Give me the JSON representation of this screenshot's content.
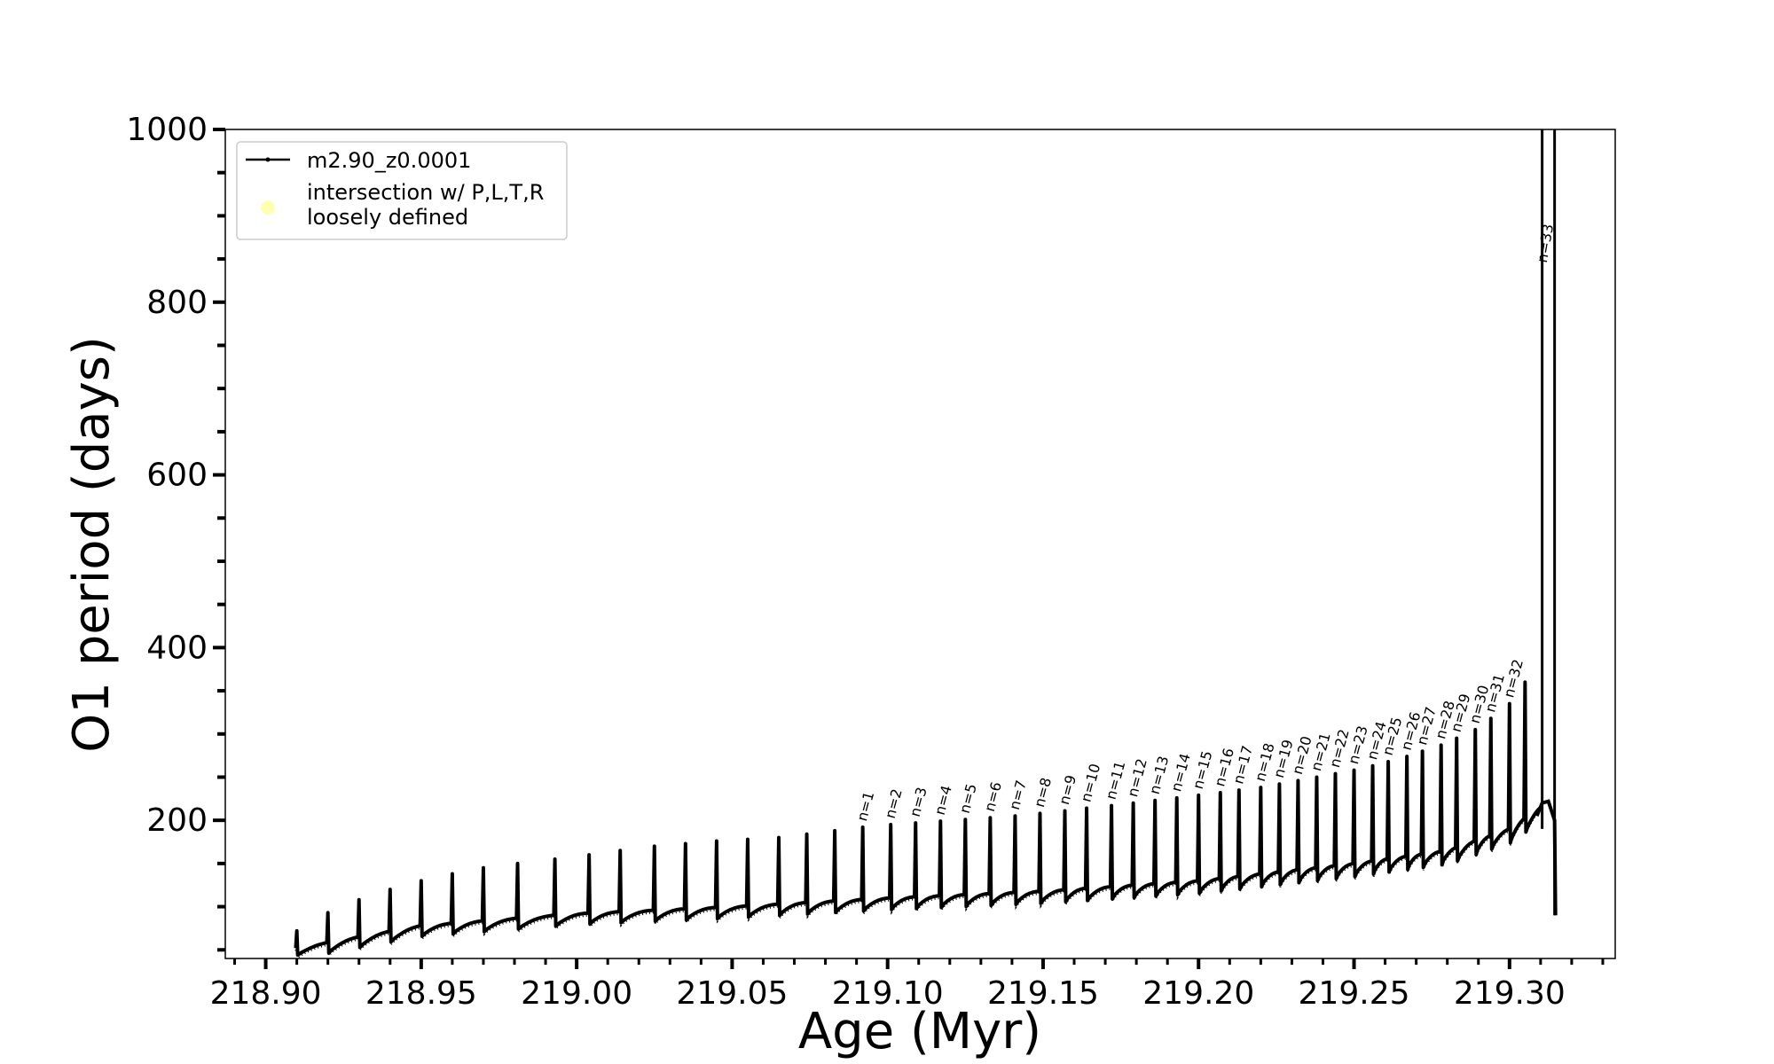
{
  "chart_data": {
    "type": "line",
    "xlabel": "Age (Myr)",
    "ylabel": "O1 period (days)",
    "xlim": [
      218.887,
      219.334
    ],
    "ylim": [
      40,
      1000
    ],
    "xticks": [
      218.9,
      218.95,
      219.0,
      219.05,
      219.1,
      219.15,
      219.2,
      219.25,
      219.3
    ],
    "xtick_labels": [
      "218.90",
      "218.95",
      "219.00",
      "219.05",
      "219.10",
      "219.15",
      "219.20",
      "219.25",
      "219.30"
    ],
    "yticks": [
      200,
      400,
      600,
      800,
      1000
    ],
    "ytick_labels": [
      "200",
      "400",
      "600",
      "800",
      "1000"
    ],
    "legend": {
      "position": "upper left",
      "entries": [
        {
          "label": "m2.90_z0.0001",
          "marker": "line-dot",
          "color": "#000000"
        },
        {
          "label": "intersection w/ P,L,T,R\nloosely defined",
          "marker": "circle",
          "color": "#ffffb0"
        }
      ]
    },
    "series": [
      {
        "name": "m2.90_z0.0001",
        "color": "#000000",
        "baseline_points": [
          [
            218.91,
            52
          ],
          [
            218.93,
            65
          ],
          [
            218.95,
            78
          ],
          [
            219.0,
            92
          ],
          [
            219.05,
            100
          ],
          [
            219.1,
            110
          ],
          [
            219.15,
            118
          ],
          [
            219.2,
            130
          ],
          [
            219.25,
            150
          ],
          [
            219.28,
            165
          ],
          [
            219.3,
            190
          ],
          [
            219.308,
            210
          ],
          [
            219.312,
            220
          ],
          [
            219.315,
            215
          ]
        ],
        "pulses": [
          {
            "x": 218.91,
            "peak": 72
          },
          {
            "x": 218.92,
            "peak": 93
          },
          {
            "x": 218.93,
            "peak": 108
          },
          {
            "x": 218.94,
            "peak": 120
          },
          {
            "x": 218.95,
            "peak": 130
          },
          {
            "x": 218.96,
            "peak": 138
          },
          {
            "x": 218.97,
            "peak": 145
          },
          {
            "x": 218.981,
            "peak": 150
          },
          {
            "x": 218.993,
            "peak": 155
          },
          {
            "x": 219.004,
            "peak": 160
          },
          {
            "x": 219.014,
            "peak": 165
          },
          {
            "x": 219.025,
            "peak": 170
          },
          {
            "x": 219.035,
            "peak": 173
          },
          {
            "x": 219.045,
            "peak": 176
          },
          {
            "x": 219.055,
            "peak": 178
          },
          {
            "x": 219.065,
            "peak": 180
          },
          {
            "x": 219.074,
            "peak": 184
          },
          {
            "x": 219.083,
            "peak": 188
          },
          {
            "x": 219.092,
            "peak": 192,
            "label": "n=1"
          },
          {
            "x": 219.101,
            "peak": 195,
            "label": "n=2"
          },
          {
            "x": 219.109,
            "peak": 197,
            "label": "n=3"
          },
          {
            "x": 219.117,
            "peak": 199,
            "label": "n=4"
          },
          {
            "x": 219.125,
            "peak": 201,
            "label": "n=5"
          },
          {
            "x": 219.133,
            "peak": 203,
            "label": "n=6"
          },
          {
            "x": 219.141,
            "peak": 205,
            "label": "n=7"
          },
          {
            "x": 219.149,
            "peak": 208,
            "label": "n=8"
          },
          {
            "x": 219.157,
            "peak": 211,
            "label": "n=9"
          },
          {
            "x": 219.164,
            "peak": 214,
            "label": "n=10"
          },
          {
            "x": 219.172,
            "peak": 217,
            "label": "n=11"
          },
          {
            "x": 219.179,
            "peak": 220,
            "label": "n=12"
          },
          {
            "x": 219.186,
            "peak": 223,
            "label": "n=13"
          },
          {
            "x": 219.193,
            "peak": 226,
            "label": "n=14"
          },
          {
            "x": 219.2,
            "peak": 229,
            "label": "n=15"
          },
          {
            "x": 219.207,
            "peak": 232,
            "label": "n=16"
          },
          {
            "x": 219.213,
            "peak": 235,
            "label": "n=17"
          },
          {
            "x": 219.22,
            "peak": 238,
            "label": "n=18"
          },
          {
            "x": 219.226,
            "peak": 242,
            "label": "n=19"
          },
          {
            "x": 219.232,
            "peak": 246,
            "label": "n=20"
          },
          {
            "x": 219.238,
            "peak": 250,
            "label": "n=21"
          },
          {
            "x": 219.244,
            "peak": 254,
            "label": "n=22"
          },
          {
            "x": 219.25,
            "peak": 258,
            "label": "n=23"
          },
          {
            "x": 219.256,
            "peak": 263,
            "label": "n=24"
          },
          {
            "x": 219.261,
            "peak": 268,
            "label": "n=25"
          },
          {
            "x": 219.267,
            "peak": 274,
            "label": "n=26"
          },
          {
            "x": 219.272,
            "peak": 280,
            "label": "n=27"
          },
          {
            "x": 219.278,
            "peak": 287,
            "label": "n=28"
          },
          {
            "x": 219.283,
            "peak": 295,
            "label": "n=29"
          },
          {
            "x": 219.289,
            "peak": 305,
            "label": "n=30"
          },
          {
            "x": 219.294,
            "peak": 318,
            "label": "n=31"
          },
          {
            "x": 219.3,
            "peak": 335,
            "label": "n=32"
          },
          {
            "x": 219.305,
            "peak": 360
          }
        ],
        "final_spikes": [
          {
            "x": 219.3105,
            "from": 190,
            "to": 1000,
            "label": "n=33"
          },
          {
            "x": 219.3145,
            "from": 90,
            "to": 1000
          }
        ]
      }
    ]
  }
}
